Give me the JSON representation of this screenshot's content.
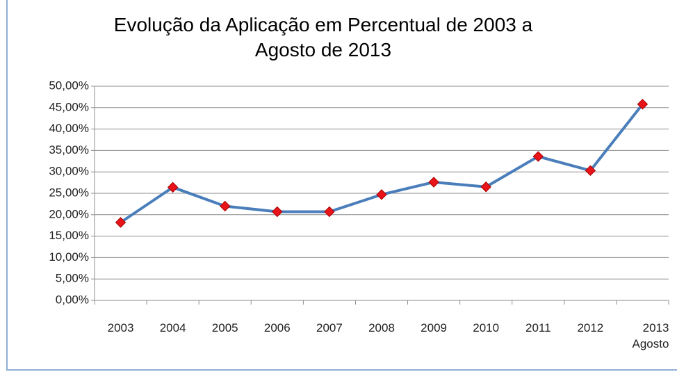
{
  "chart_data": {
    "type": "line",
    "title": "Evolução da Aplicação em Percentual de 2003 a\nAgosto de 2013",
    "categories": [
      "2003",
      "2004",
      "2005",
      "2006",
      "2007",
      "2008",
      "2009",
      "2010",
      "2011",
      "2012",
      "2013\nAgosto"
    ],
    "series": [
      {
        "color": "#4a7ebb",
        "marker_color": "#e8141a",
        "values": [
          18.2,
          26.4,
          22.0,
          20.7,
          20.7,
          24.7,
          27.6,
          26.5,
          33.6,
          30.3,
          45.8
        ]
      }
    ],
    "ylim": [
      0,
      50
    ],
    "yticks": [
      {
        "value": 0,
        "label": "0,00%"
      },
      {
        "value": 5,
        "label": "5,00%"
      },
      {
        "value": 10,
        "label": "10,00%"
      },
      {
        "value": 15,
        "label": "15,00%"
      },
      {
        "value": 20,
        "label": "20,00%"
      },
      {
        "value": 25,
        "label": "25,00%"
      },
      {
        "value": 30,
        "label": "30,00%"
      },
      {
        "value": 35,
        "label": "35,00%"
      },
      {
        "value": 40,
        "label": "40,00%"
      },
      {
        "value": 45,
        "label": "45,00%"
      },
      {
        "value": 50,
        "label": "50,00%"
      }
    ],
    "grid": true
  }
}
